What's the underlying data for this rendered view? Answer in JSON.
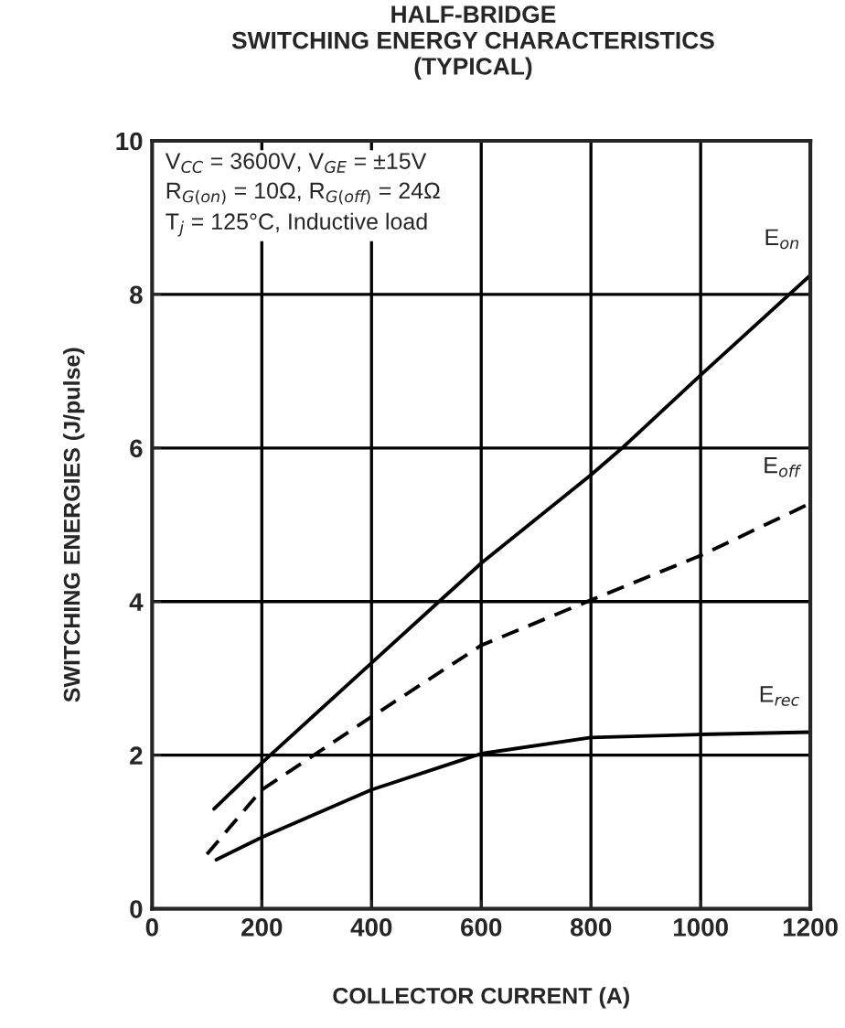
{
  "chart_data": {
    "type": "line",
    "title": "HALF-BRIDGE\nSWITCHING ENERGY CHARACTERISTICS\n(TYPICAL)",
    "xlabel": "COLLECTOR CURRENT (A)",
    "ylabel": "SWITCHING ENERGIES (J/pulse)",
    "series": [
      {
        "name": "E$_{on}$",
        "color": "#000000",
        "line_style": "solid",
        "x": [
          113,
          200,
          400,
          523,
          600,
          800,
          857,
          1000,
          1200
        ],
        "values": [
          1.3,
          1.9,
          3.2,
          4.0,
          4.5,
          5.65,
          6.0,
          6.95,
          8.25
        ]
      },
      {
        "name": "E$_{off}$",
        "color": "#000000",
        "line_style": "dashed",
        "x": [
          100,
          200,
          400,
          600,
          800,
          1000,
          1200
        ],
        "values": [
          0.71,
          1.55,
          2.5,
          3.43,
          4.02,
          4.6,
          5.28
        ]
      },
      {
        "name": "E$_{rec}$",
        "color": "#000000",
        "line_style": "solid",
        "x": [
          117,
          200,
          400,
          600,
          800,
          1000,
          1200
        ],
        "values": [
          0.64,
          0.93,
          1.55,
          2.02,
          2.23,
          2.27,
          2.3
        ]
      }
    ],
    "annotations": [
      "V$_{CC}$ = 3600V, V$_{GE}$ = ±15V\nR$_{G(on)}$ = 10Ω, R$_{G(off)}$ = 24Ω\nT$_{j}$ = 125°C, Inductive load"
    ],
    "xlim": [
      0,
      1200
    ],
    "ylim": [
      0,
      10
    ],
    "xticks": [
      0,
      200,
      400,
      600,
      800,
      1000,
      1200
    ],
    "yticks": [
      0,
      2,
      4,
      6,
      8,
      10
    ],
    "grid": true,
    "legend": false
  }
}
